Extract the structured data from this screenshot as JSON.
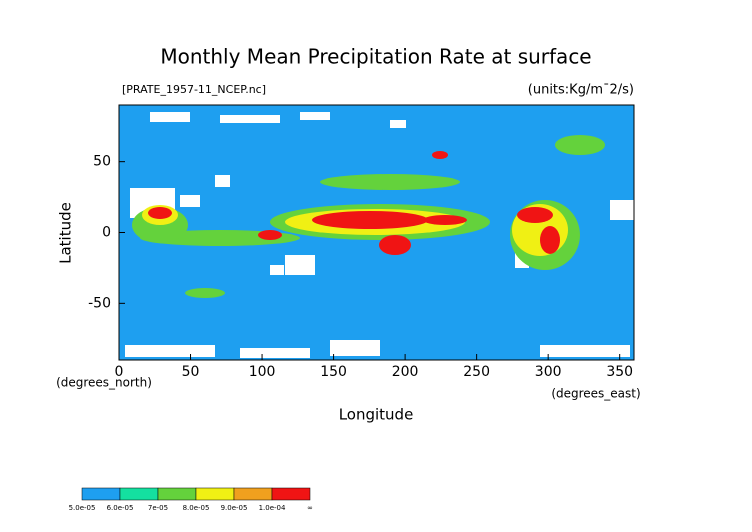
{
  "chart_data": {
    "type": "map",
    "title": "Monthly Mean Precipitation Rate at surface",
    "source": "[PRATE_1957-11_NCEP.nc]",
    "units": "(units:Kg/m¯2/s)",
    "x_label": "Longitude",
    "y_label": "Latitude",
    "x_unit": "(degrees_east)",
    "y_unit": "(degrees_north)",
    "xlim": [
      0,
      360
    ],
    "ylim": [
      -90,
      90
    ],
    "xticks": [
      0,
      50,
      100,
      150,
      200,
      250,
      300,
      350
    ],
    "yticks": [
      -50,
      0,
      50
    ],
    "colorbar": {
      "labels": [
        "5.0e-05",
        "6.0e-05",
        "7e-05",
        "8.0e-05",
        "9.0e-05",
        "1.0e-04",
        "∞"
      ],
      "colors": [
        "#1e9ff0",
        "#14e0a0",
        "#64d23c",
        "#f0f014",
        "#f0a01e",
        "#f01414"
      ]
    }
  }
}
